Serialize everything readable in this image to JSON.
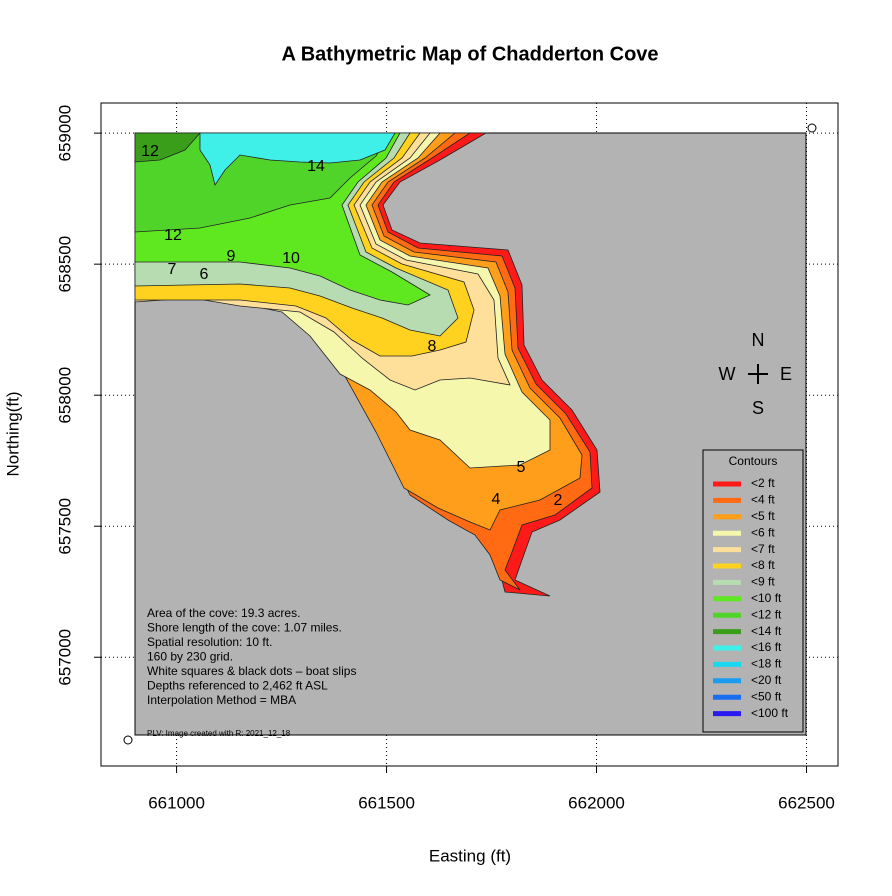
{
  "chart_data": {
    "type": "map",
    "title": "A Bathymetric Map of  Chadderton Cove",
    "x_label": "Easting (ft)",
    "y_label": "Northing(ft)",
    "xlim": [
      660820,
      662575
    ],
    "ylim": [
      656585,
      659115
    ],
    "xticks": [
      661000,
      661500,
      662000,
      662500
    ],
    "yticks": [
      657000,
      657500,
      658000,
      658500,
      659000
    ],
    "grid": true,
    "contour_labels": [
      "14",
      "12",
      "12",
      "9",
      "10",
      "7",
      "6",
      "8",
      "5",
      "4",
      "2"
    ],
    "compass": {
      "n": "N",
      "w": "W",
      "e": "E",
      "s": "S"
    },
    "annotations": [
      "Area of the cove: 19.3 acres.",
      "Shore length of the cove: 1.07 miles.",
      "Spatial resolution: 10 ft.",
      "160 by 230 grid.",
      "White squares & black dots – boat slips",
      "Depths referenced to 2,462 ft ASL",
      "Interpolation Method =  MBA"
    ],
    "footnote": "PLV: Image created with R: 2021_12_18",
    "legend": {
      "title": "Contours",
      "corner": "bottom-right",
      "entries": [
        {
          "label": "<2 ft",
          "color": "#ff1a1a"
        },
        {
          "label": "<4 ft",
          "color": "#ff6a13"
        },
        {
          "label": "<5 ft",
          "color": "#ff9e1b"
        },
        {
          "label": "<6 ft",
          "color": "#f5f7ad"
        },
        {
          "label": "<7 ft",
          "color": "#ffe09a"
        },
        {
          "label": "<8 ft",
          "color": "#ffd21f"
        },
        {
          "label": "<9 ft",
          "color": "#b8dcb2"
        },
        {
          "label": "<10 ft",
          "color": "#5fe820"
        },
        {
          "label": "<12 ft",
          "color": "#50d42a"
        },
        {
          "label": "<14 ft",
          "color": "#3a9e1a"
        },
        {
          "label": "<16 ft",
          "color": "#3ff0e8"
        },
        {
          "label": "<18 ft",
          "color": "#1ad8f0"
        },
        {
          "label": "<20 ft",
          "color": "#1a9cf0"
        },
        {
          "label": "<50 ft",
          "color": "#1a6cf0"
        },
        {
          "label": "<100 ft",
          "color": "#2a1af0"
        }
      ]
    }
  }
}
